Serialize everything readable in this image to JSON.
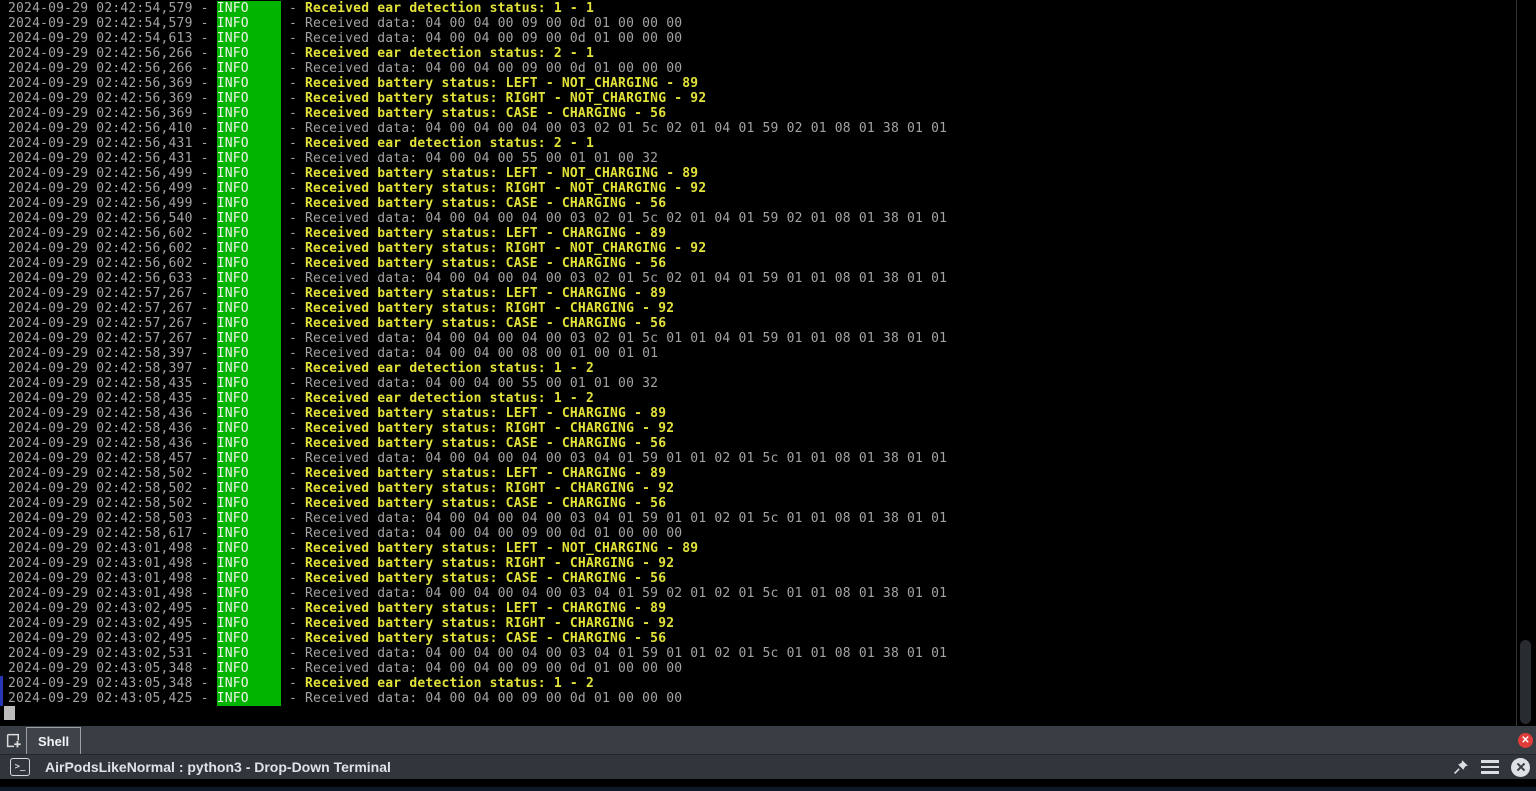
{
  "terminal": {
    "date": "2024-09-29",
    "level": "INFO",
    "lines": [
      {
        "t": "02:42:54,579",
        "k": "event",
        "m": "Received ear detection status: 1 - 1"
      },
      {
        "t": "02:42:54,579",
        "k": "data",
        "m": "Received data: 04 00 04 00 09 00 0d 01 00 00 00"
      },
      {
        "t": "02:42:54,613",
        "k": "data",
        "m": "Received data: 04 00 04 00 09 00 0d 01 00 00 00"
      },
      {
        "t": "02:42:56,266",
        "k": "event",
        "m": "Received ear detection status: 2 - 1"
      },
      {
        "t": "02:42:56,266",
        "k": "data",
        "m": "Received data: 04 00 04 00 09 00 0d 01 00 00 00"
      },
      {
        "t": "02:42:56,369",
        "k": "event",
        "m": "Received battery status: LEFT - NOT_CHARGING - 89"
      },
      {
        "t": "02:42:56,369",
        "k": "event",
        "m": "Received battery status: RIGHT - NOT_CHARGING - 92"
      },
      {
        "t": "02:42:56,369",
        "k": "event",
        "m": "Received battery status: CASE - CHARGING - 56"
      },
      {
        "t": "02:42:56,410",
        "k": "data",
        "m": "Received data: 04 00 04 00 04 00 03 02 01 5c 02 01 04 01 59 02 01 08 01 38 01 01"
      },
      {
        "t": "02:42:56,431",
        "k": "event",
        "m": "Received ear detection status: 2 - 1"
      },
      {
        "t": "02:42:56,431",
        "k": "data",
        "m": "Received data: 04 00 04 00 55 00 01 01 00 32"
      },
      {
        "t": "02:42:56,499",
        "k": "event",
        "m": "Received battery status: LEFT - NOT_CHARGING - 89"
      },
      {
        "t": "02:42:56,499",
        "k": "event",
        "m": "Received battery status: RIGHT - NOT_CHARGING - 92"
      },
      {
        "t": "02:42:56,499",
        "k": "event",
        "m": "Received battery status: CASE - CHARGING - 56"
      },
      {
        "t": "02:42:56,540",
        "k": "data",
        "m": "Received data: 04 00 04 00 04 00 03 02 01 5c 02 01 04 01 59 02 01 08 01 38 01 01"
      },
      {
        "t": "02:42:56,602",
        "k": "event",
        "m": "Received battery status: LEFT - CHARGING - 89"
      },
      {
        "t": "02:42:56,602",
        "k": "event",
        "m": "Received battery status: RIGHT - NOT_CHARGING - 92"
      },
      {
        "t": "02:42:56,602",
        "k": "event",
        "m": "Received battery status: CASE - CHARGING - 56"
      },
      {
        "t": "02:42:56,633",
        "k": "data",
        "m": "Received data: 04 00 04 00 04 00 03 02 01 5c 02 01 04 01 59 01 01 08 01 38 01 01"
      },
      {
        "t": "02:42:57,267",
        "k": "event",
        "m": "Received battery status: LEFT - CHARGING - 89"
      },
      {
        "t": "02:42:57,267",
        "k": "event",
        "m": "Received battery status: RIGHT - CHARGING - 92"
      },
      {
        "t": "02:42:57,267",
        "k": "event",
        "m": "Received battery status: CASE - CHARGING - 56"
      },
      {
        "t": "02:42:57,267",
        "k": "data",
        "m": "Received data: 04 00 04 00 04 00 03 02 01 5c 01 01 04 01 59 01 01 08 01 38 01 01"
      },
      {
        "t": "02:42:58,397",
        "k": "data",
        "m": "Received data: 04 00 04 00 08 00 01 00 01 01"
      },
      {
        "t": "02:42:58,397",
        "k": "event",
        "m": "Received ear detection status: 1 - 2"
      },
      {
        "t": "02:42:58,435",
        "k": "data",
        "m": "Received data: 04 00 04 00 55 00 01 01 00 32"
      },
      {
        "t": "02:42:58,435",
        "k": "event",
        "m": "Received ear detection status: 1 - 2"
      },
      {
        "t": "02:42:58,436",
        "k": "event",
        "m": "Received battery status: LEFT - CHARGING - 89"
      },
      {
        "t": "02:42:58,436",
        "k": "event",
        "m": "Received battery status: RIGHT - CHARGING - 92"
      },
      {
        "t": "02:42:58,436",
        "k": "event",
        "m": "Received battery status: CASE - CHARGING - 56"
      },
      {
        "t": "02:42:58,457",
        "k": "data",
        "m": "Received data: 04 00 04 00 04 00 03 04 01 59 01 01 02 01 5c 01 01 08 01 38 01 01"
      },
      {
        "t": "02:42:58,502",
        "k": "event",
        "m": "Received battery status: LEFT - CHARGING - 89"
      },
      {
        "t": "02:42:58,502",
        "k": "event",
        "m": "Received battery status: RIGHT - CHARGING - 92"
      },
      {
        "t": "02:42:58,502",
        "k": "event",
        "m": "Received battery status: CASE - CHARGING - 56"
      },
      {
        "t": "02:42:58,503",
        "k": "data",
        "m": "Received data: 04 00 04 00 04 00 03 04 01 59 01 01 02 01 5c 01 01 08 01 38 01 01"
      },
      {
        "t": "02:42:58,617",
        "k": "data",
        "m": "Received data: 04 00 04 00 09 00 0d 01 00 00 00"
      },
      {
        "t": "02:43:01,498",
        "k": "event",
        "m": "Received battery status: LEFT - NOT_CHARGING - 89"
      },
      {
        "t": "02:43:01,498",
        "k": "event",
        "m": "Received battery status: RIGHT - CHARGING - 92"
      },
      {
        "t": "02:43:01,498",
        "k": "event",
        "m": "Received battery status: CASE - CHARGING - 56"
      },
      {
        "t": "02:43:01,498",
        "k": "data",
        "m": "Received data: 04 00 04 00 04 00 03 04 01 59 02 01 02 01 5c 01 01 08 01 38 01 01"
      },
      {
        "t": "02:43:02,495",
        "k": "event",
        "m": "Received battery status: LEFT - CHARGING - 89"
      },
      {
        "t": "02:43:02,495",
        "k": "event",
        "m": "Received battery status: RIGHT - CHARGING - 92"
      },
      {
        "t": "02:43:02,495",
        "k": "event",
        "m": "Received battery status: CASE - CHARGING - 56"
      },
      {
        "t": "02:43:02,531",
        "k": "data",
        "m": "Received data: 04 00 04 00 04 00 03 04 01 59 01 01 02 01 5c 01 01 08 01 38 01 01"
      },
      {
        "t": "02:43:05,348",
        "k": "data",
        "m": "Received data: 04 00 04 00 09 00 0d 01 00 00 00"
      },
      {
        "t": "02:43:05,348",
        "k": "event",
        "m": "Received ear detection status: 1 - 2"
      },
      {
        "t": "02:43:05,425",
        "k": "data",
        "m": "Received data: 04 00 04 00 09 00 0d 01 00 00 00"
      }
    ],
    "colors": {
      "background": "#000000",
      "foreground_gray": "#a3a3a3",
      "level_badge_bg": "#00b400",
      "level_badge_fg": "#f3f3ee",
      "event_yellow": "#e2e23a",
      "activity_marker_blue": "#2737b8",
      "cursor_gray": "#bcbcbc"
    }
  },
  "tab_bar": {
    "tab_label": "Shell"
  },
  "title_bar": {
    "title": "AirPodsLikeNormal : python3 - Drop-Down Terminal",
    "prompt_glyph": ">_"
  },
  "icons": {
    "new_tab": "new-tab-icon",
    "terminal_prompt": "terminal-icon",
    "pin": "pin-icon",
    "menu": "hamburger-menu-icon",
    "close_window": "close-icon",
    "close_tab": "close-tab-icon"
  }
}
